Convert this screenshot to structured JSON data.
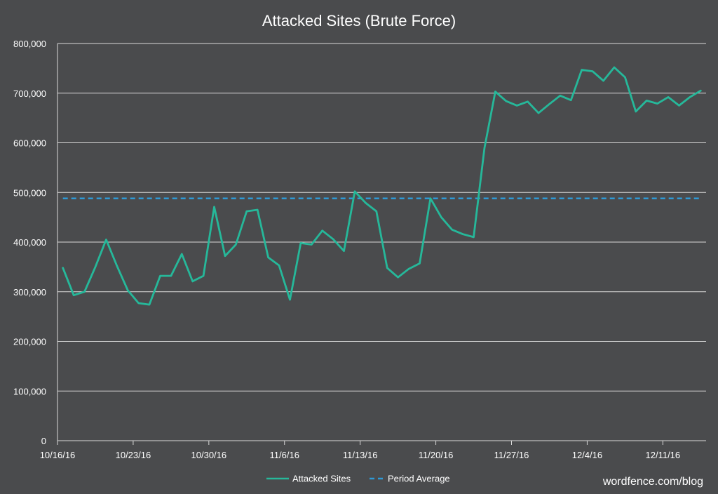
{
  "chart_data": {
    "type": "line",
    "title": "Attacked Sites (Brute Force)",
    "xlabel": "",
    "ylabel": "",
    "ylim": [
      0,
      800000
    ],
    "yticks": [
      0,
      100000,
      200000,
      300000,
      400000,
      500000,
      600000,
      700000,
      800000
    ],
    "ytick_labels": [
      "0",
      "100,000",
      "200,000",
      "300,000",
      "400,000",
      "500,000",
      "600,000",
      "700,000",
      "800,000"
    ],
    "xtick_labels": [
      "10/16/16",
      "10/23/16",
      "10/30/16",
      "11/6/16",
      "11/13/16",
      "11/20/16",
      "11/27/16",
      "12/4/16",
      "12/11/16"
    ],
    "xtick_indices": [
      0,
      7,
      14,
      21,
      28,
      35,
      42,
      49,
      56
    ],
    "grid": true,
    "legend_position": "bottom",
    "series": [
      {
        "name": "Attacked Sites",
        "color": "#26b89a",
        "style": "solid",
        "values": [
          348000,
          293000,
          300000,
          350000,
          405000,
          352000,
          303000,
          277000,
          274000,
          332000,
          332000,
          376000,
          321000,
          332000,
          471000,
          372000,
          395000,
          462000,
          465000,
          369000,
          353000,
          284000,
          398000,
          395000,
          423000,
          406000,
          382000,
          502000,
          479000,
          462000,
          348000,
          329000,
          346000,
          357000,
          488000,
          450000,
          425000,
          416000,
          410000,
          590000,
          703000,
          684000,
          675000,
          683000,
          660000,
          678000,
          695000,
          686000,
          747000,
          744000,
          725000,
          752000,
          732000,
          663000,
          685000,
          679000,
          692000,
          675000,
          692000,
          705000
        ]
      },
      {
        "name": "Period Average",
        "color": "#2e9ad6",
        "style": "dashed",
        "values": [
          488000
        ]
      }
    ]
  },
  "watermark": "wordfence.com/blog"
}
